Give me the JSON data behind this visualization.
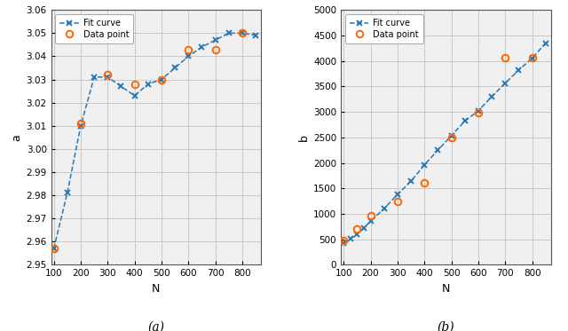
{
  "left": {
    "N_fit": [
      100,
      150,
      200,
      250,
      300,
      350,
      400,
      450,
      500,
      550,
      600,
      650,
      700,
      750,
      800,
      850
    ],
    "a_fit": [
      2.957,
      2.981,
      3.01,
      3.031,
      3.031,
      3.027,
      3.023,
      3.028,
      3.03,
      3.035,
      3.04,
      3.044,
      3.047,
      3.05,
      3.05,
      3.049
    ],
    "N_data": [
      100,
      200,
      300,
      400,
      500,
      600,
      700,
      800
    ],
    "a_data": [
      2.957,
      3.011,
      3.032,
      3.028,
      3.03,
      3.043,
      3.043,
      3.05
    ],
    "xlabel": "N",
    "ylabel": "a",
    "sublabel": "(a)",
    "ylim": [
      2.95,
      3.06
    ],
    "yticks": [
      2.95,
      2.96,
      2.97,
      2.98,
      2.99,
      3.0,
      3.01,
      3.02,
      3.03,
      3.04,
      3.05,
      3.06
    ],
    "xlim": [
      90,
      870
    ],
    "xticks": [
      100,
      200,
      300,
      400,
      500,
      600,
      700,
      800
    ]
  },
  "right": {
    "N_fit": [
      100,
      125,
      150,
      175,
      200,
      250,
      300,
      350,
      400,
      450,
      500,
      550,
      600,
      650,
      700,
      750,
      800,
      850
    ],
    "b_fit": [
      430,
      510,
      600,
      720,
      860,
      1100,
      1380,
      1640,
      1960,
      2250,
      2530,
      2820,
      3020,
      3300,
      3560,
      3820,
      4050,
      4350
    ],
    "N_data": [
      100,
      150,
      200,
      300,
      400,
      500,
      600,
      700,
      800
    ],
    "b_data": [
      480,
      700,
      960,
      1240,
      1600,
      2490,
      2980,
      4070,
      4070
    ],
    "xlabel": "N",
    "ylabel": "b",
    "sublabel": "(b)",
    "ylim": [
      0,
      5000
    ],
    "yticks": [
      0,
      500,
      1000,
      1500,
      2000,
      2500,
      3000,
      3500,
      4000,
      4500,
      5000
    ],
    "xlim": [
      90,
      870
    ],
    "xticks": [
      100,
      200,
      300,
      400,
      500,
      600,
      700,
      800
    ]
  },
  "line_color": "#2878b5",
  "data_color": "#ff6600",
  "fit_label": "Fit curve",
  "data_label": "Data point",
  "grid_color": "#c8c8c8",
  "bg_color": "#f0f0f0",
  "fig_bg": "#ffffff"
}
